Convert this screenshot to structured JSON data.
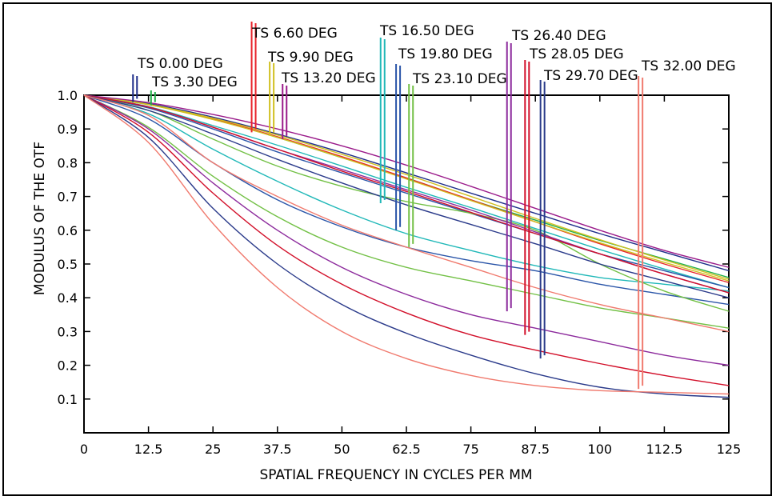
{
  "chart_data": {
    "type": "line",
    "title": "",
    "xlabel": "SPATIAL FREQUENCY IN CYCLES PER MM",
    "ylabel": "MODULUS OF THE OTF",
    "xlim": [
      0,
      125
    ],
    "ylim": [
      0,
      1.0
    ],
    "xticks": [
      "0",
      "12.5",
      "25",
      "37.5",
      "50",
      "62.5",
      "75",
      "87.5",
      "100",
      "112.5",
      "125"
    ],
    "yticks": [
      "0.1",
      "0.2",
      "0.3",
      "0.4",
      "0.5",
      "0.6",
      "0.7",
      "0.8",
      "0.9",
      "1.0"
    ],
    "grid": false,
    "x": [
      0,
      12.5,
      25,
      37.5,
      50,
      62.5,
      75,
      87.5,
      100,
      112.5,
      125
    ],
    "fields": [
      {
        "label": "TS 0.00 DEG",
        "color": "#1f2f8a",
        "marker_x": 9.5,
        "marker_lo": 0.98,
        "curves": [
          [
            1,
            0.975,
            0.935,
            0.885,
            0.83,
            0.77,
            0.71,
            0.65,
            0.59,
            0.535,
            0.48
          ]
        ]
      },
      {
        "label": "TS 3.30 DEG",
        "color": "#22b04a",
        "marker_x": 13.0,
        "marker_lo": 0.97,
        "curves": [
          [
            1,
            0.973,
            0.93,
            0.875,
            0.815,
            0.755,
            0.69,
            0.63,
            0.57,
            0.515,
            0.46
          ]
        ]
      },
      {
        "label": "TS 6.60 DEG",
        "color": "#e8232a",
        "marker_x": 32.5,
        "marker_lo": 0.89,
        "curves": [
          [
            1,
            0.972,
            0.93,
            0.877,
            0.818,
            0.755,
            0.69,
            0.625,
            0.56,
            0.5,
            0.445
          ]
        ]
      },
      {
        "label": "TS 9.90 DEG",
        "color": "#d0c020",
        "marker_x": 36.0,
        "marker_lo": 0.88,
        "curves": [
          [
            1,
            0.973,
            0.932,
            0.882,
            0.825,
            0.765,
            0.7,
            0.635,
            0.572,
            0.512,
            0.455
          ],
          [
            1,
            0.972,
            0.928,
            0.875,
            0.815,
            0.752,
            0.688,
            0.625,
            0.563,
            0.505,
            0.45
          ]
        ]
      },
      {
        "label": "TS 13.20 DEG",
        "color": "#9a1a8a",
        "marker_x": 38.5,
        "marker_lo": 0.87,
        "curves": [
          [
            1,
            0.978,
            0.943,
            0.9,
            0.85,
            0.793,
            0.73,
            0.665,
            0.6,
            0.54,
            0.49
          ]
        ]
      },
      {
        "label": "TS 16.50 DEG",
        "color": "#20b8b8",
        "marker_x": 57.5,
        "marker_lo": 0.68,
        "curves": [
          [
            1,
            0.966,
            0.91,
            0.852,
            0.79,
            0.727,
            0.667,
            0.605,
            0.543,
            0.485,
            0.43
          ],
          [
            1,
            0.945,
            0.84,
            0.745,
            0.66,
            0.59,
            0.54,
            0.495,
            0.46,
            0.44,
            0.42
          ]
        ]
      },
      {
        "label": "TS 19.80 DEG",
        "color": "#2a55a8",
        "marker_x": 60.5,
        "marker_lo": 0.6,
        "curves": [
          [
            1,
            0.962,
            0.9,
            0.832,
            0.77,
            0.71,
            0.65,
            0.59,
            0.53,
            0.48,
            0.43
          ],
          [
            1,
            0.93,
            0.8,
            0.69,
            0.61,
            0.55,
            0.51,
            0.48,
            0.44,
            0.41,
            0.38
          ]
        ]
      },
      {
        "label": "TS 23.10 DEG",
        "color": "#72c045",
        "marker_x": 63.0,
        "marker_lo": 0.55,
        "curves": [
          [
            1,
            0.955,
            0.87,
            0.79,
            0.73,
            0.685,
            0.65,
            0.6,
            0.5,
            0.42,
            0.36
          ],
          [
            1,
            0.905,
            0.76,
            0.64,
            0.55,
            0.49,
            0.45,
            0.41,
            0.37,
            0.34,
            0.31
          ]
        ]
      },
      {
        "label": "TS 26.40 DEG",
        "color": "#8c2a9c",
        "marker_x": 82.0,
        "marker_lo": 0.36,
        "curves": [
          [
            1,
            0.965,
            0.905,
            0.84,
            0.78,
            0.72,
            0.66,
            0.595,
            0.53,
            0.47,
            0.415
          ],
          [
            1,
            0.9,
            0.74,
            0.6,
            0.49,
            0.41,
            0.35,
            0.31,
            0.27,
            0.23,
            0.2
          ]
        ]
      },
      {
        "label": "TS 28.05 DEG",
        "color": "#d2102a",
        "marker_x": 85.5,
        "marker_lo": 0.29,
        "curves": [
          [
            1,
            0.965,
            0.905,
            0.84,
            0.775,
            0.715,
            0.653,
            0.59,
            0.53,
            0.47,
            0.415
          ],
          [
            1,
            0.89,
            0.71,
            0.555,
            0.44,
            0.355,
            0.29,
            0.245,
            0.205,
            0.17,
            0.14
          ]
        ]
      },
      {
        "label": "TS 29.70 DEG",
        "color": "#2a3a8a",
        "marker_x": 88.5,
        "marker_lo": 0.22,
        "curves": [
          [
            1,
            0.955,
            0.885,
            0.81,
            0.74,
            0.675,
            0.617,
            0.56,
            0.5,
            0.45,
            0.4
          ],
          [
            1,
            0.875,
            0.665,
            0.5,
            0.38,
            0.295,
            0.23,
            0.175,
            0.135,
            0.115,
            0.105
          ]
        ]
      },
      {
        "label": "TS 32.00 DEG",
        "color": "#f07a6e",
        "marker_x": 107.5,
        "marker_lo": 0.13,
        "curves": [
          [
            1,
            0.94,
            0.8,
            0.7,
            0.615,
            0.55,
            0.49,
            0.43,
            0.38,
            0.34,
            0.3
          ],
          [
            1,
            0.86,
            0.62,
            0.43,
            0.3,
            0.22,
            0.17,
            0.14,
            0.125,
            0.12,
            0.115
          ]
        ]
      }
    ]
  }
}
